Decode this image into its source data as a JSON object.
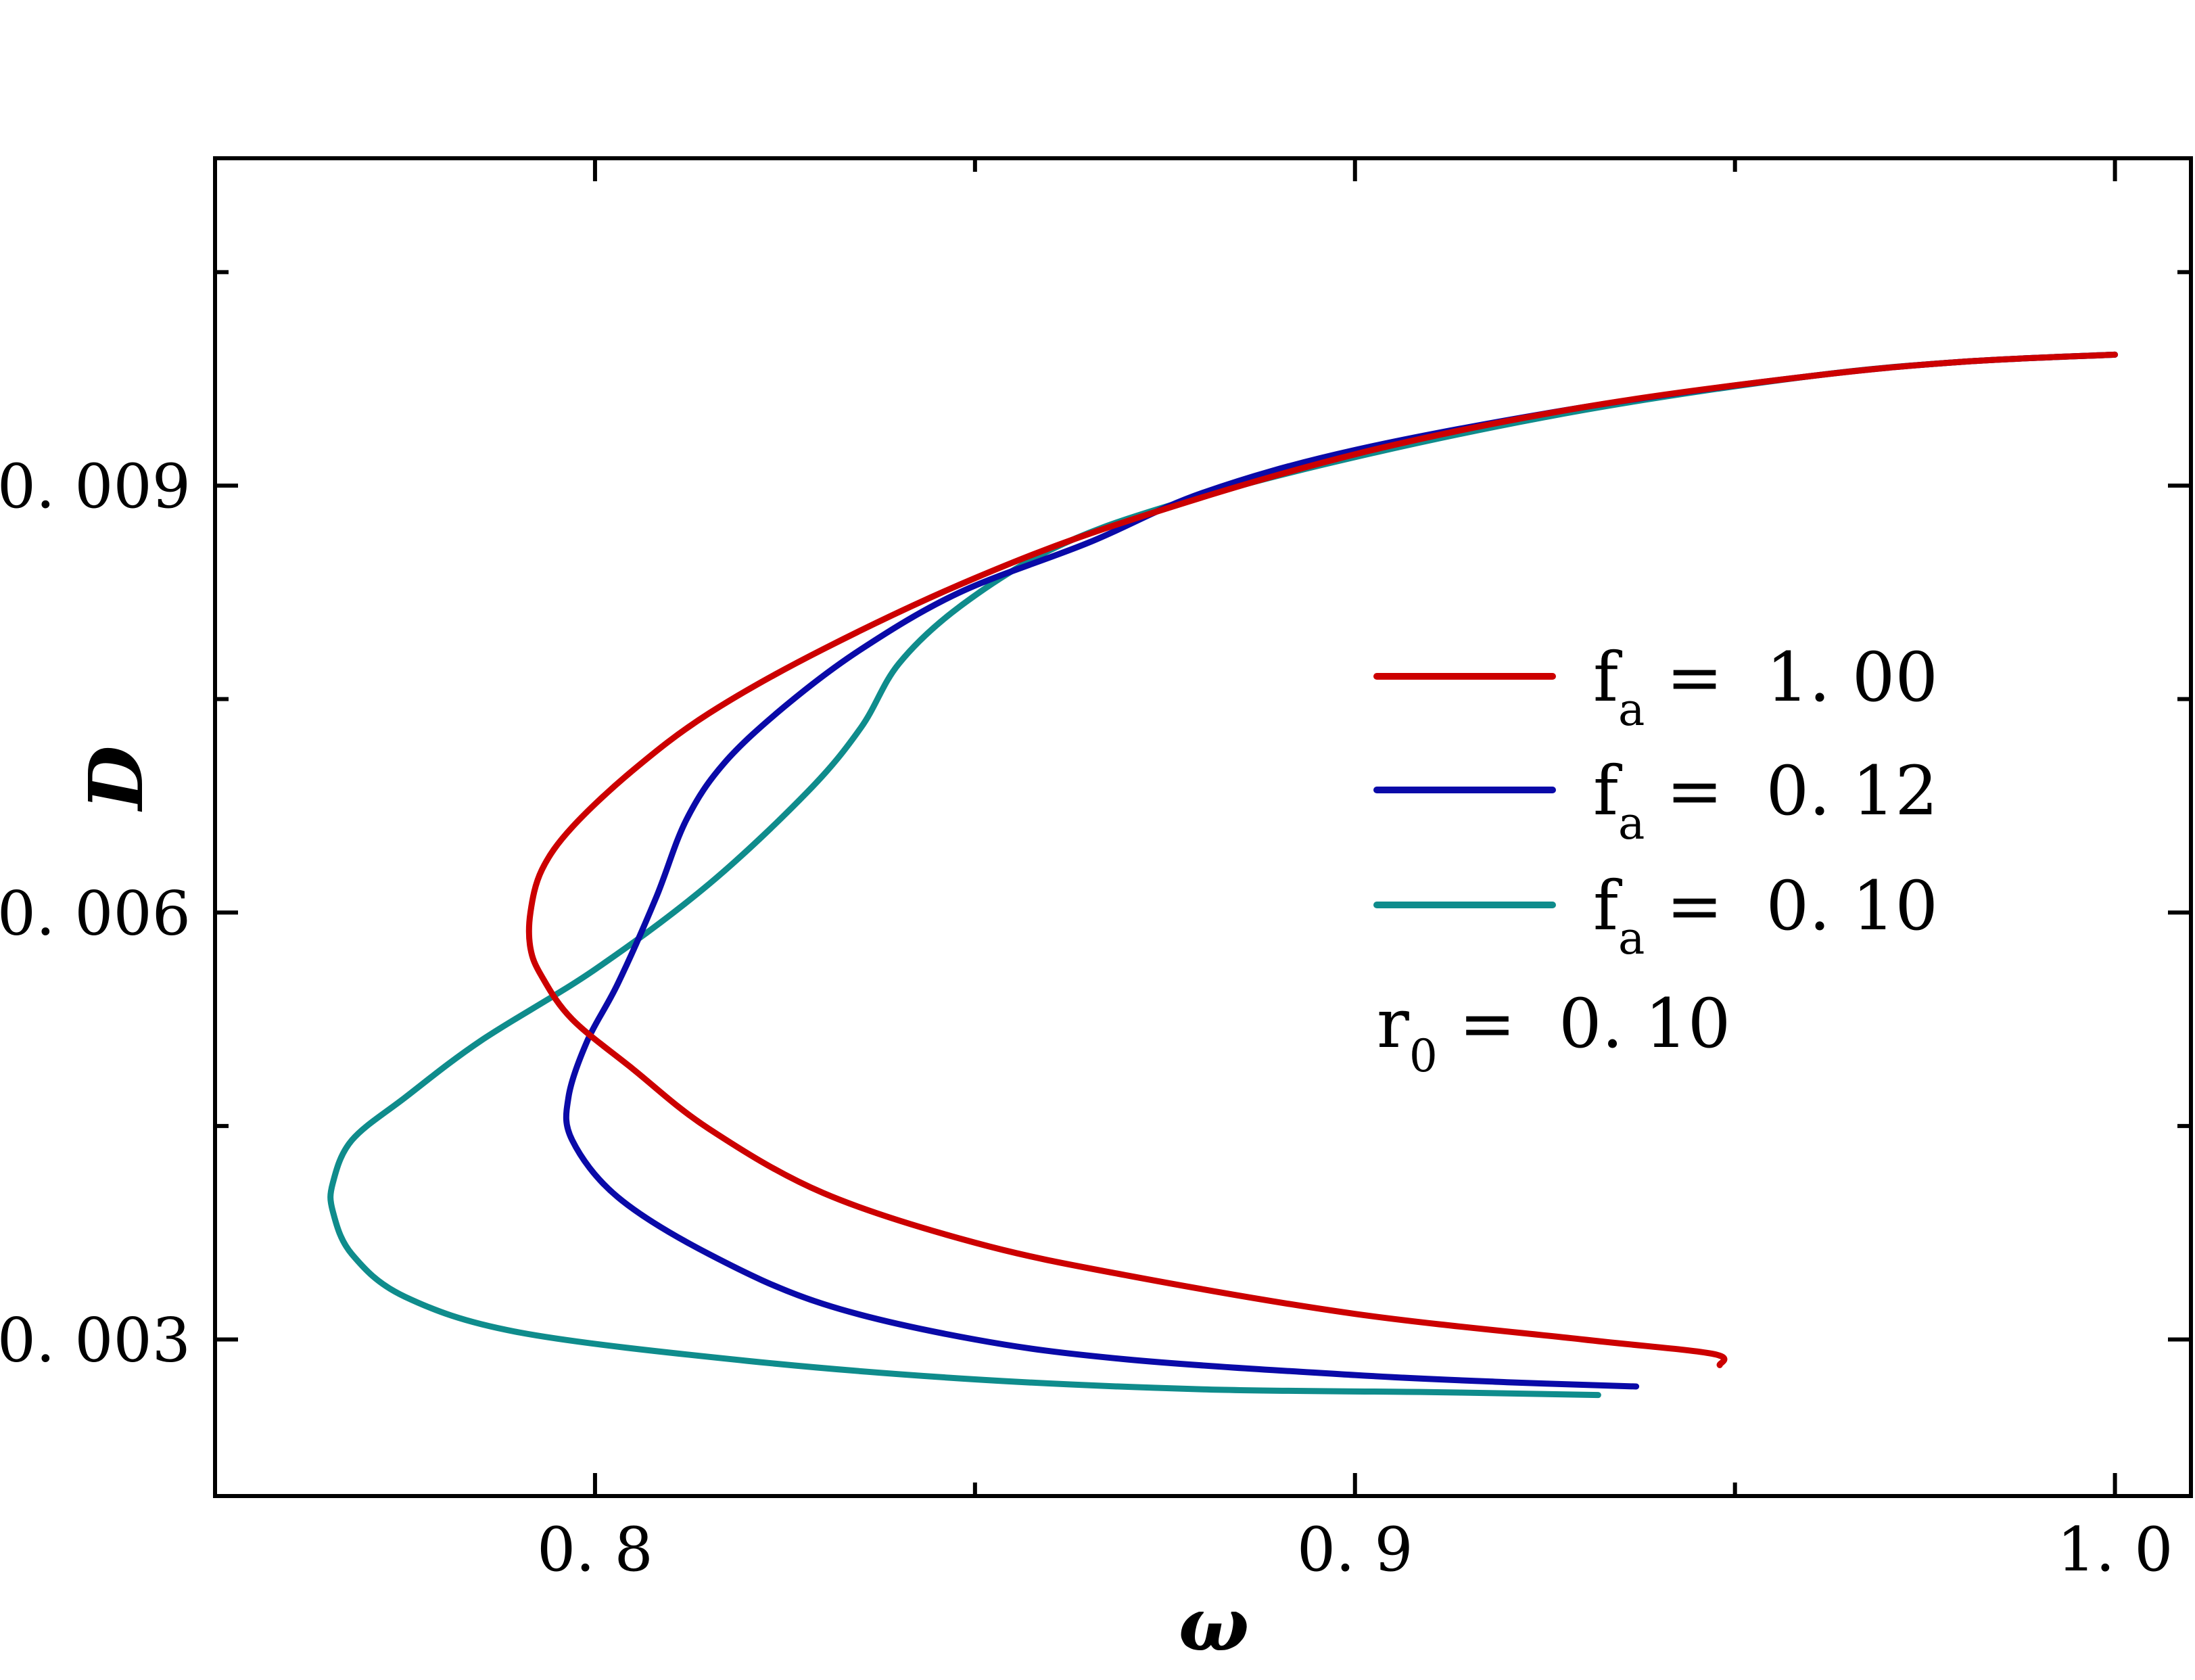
{
  "chart_data": {
    "type": "line",
    "xlabel": "ω",
    "ylabel": "D",
    "xlim": [
      0.75,
      1.01
    ],
    "ylim": [
      0.0019,
      0.0113
    ],
    "x_ticks": [
      {
        "value": 0.8,
        "label": "0. 8"
      },
      {
        "value": 0.9,
        "label": "0. 9"
      },
      {
        "value": 1.0,
        "label": "1. 0"
      }
    ],
    "x_minor_ticks": [
      0.85,
      0.95
    ],
    "y_ticks": [
      {
        "value": 0.003,
        "label": "0. 003"
      },
      {
        "value": 0.006,
        "label": "0. 006"
      },
      {
        "value": 0.009,
        "label": "0. 009"
      }
    ],
    "y_minor_ticks": [
      0.0045,
      0.0075,
      0.0105
    ],
    "legend_position": "right",
    "annotation": {
      "main": "r",
      "sub": "0",
      "rest": " =  0. 10"
    },
    "series": [
      {
        "name": "f_a = 1.00",
        "label_main": "f",
        "label_sub": "a",
        "label_rest": " =  1. 00",
        "color": "#cc0000",
        "points": [
          [
            0.948,
            0.00282
          ],
          [
            0.947,
            0.0029
          ],
          [
            0.93,
            0.003
          ],
          [
            0.9,
            0.00318
          ],
          [
            0.87,
            0.00345
          ],
          [
            0.85,
            0.00368
          ],
          [
            0.83,
            0.00403
          ],
          [
            0.815,
            0.00448
          ],
          [
            0.805,
            0.0049
          ],
          [
            0.797,
            0.00525
          ],
          [
            0.793,
            0.00555
          ],
          [
            0.7915,
            0.00575
          ],
          [
            0.7915,
            0.006
          ],
          [
            0.793,
            0.0063
          ],
          [
            0.797,
            0.0066
          ],
          [
            0.805,
            0.007
          ],
          [
            0.815,
            0.0074
          ],
          [
            0.83,
            0.00785
          ],
          [
            0.85,
            0.00835
          ],
          [
            0.87,
            0.00875
          ],
          [
            0.9,
            0.00922
          ],
          [
            0.93,
            0.00955
          ],
          [
            0.96,
            0.00977
          ],
          [
            0.98,
            0.00987
          ],
          [
            1.0,
            0.00992
          ]
        ]
      },
      {
        "name": "f_a = 0.12",
        "label_main": "f",
        "label_sub": "a",
        "label_rest": " =  0. 12",
        "color": "#0a0aa8",
        "points": [
          [
            0.937,
            0.00267
          ],
          [
            0.92,
            0.0027
          ],
          [
            0.9,
            0.00275
          ],
          [
            0.87,
            0.00286
          ],
          [
            0.85,
            0.003
          ],
          [
            0.83,
            0.00325
          ],
          [
            0.815,
            0.0036
          ],
          [
            0.803,
            0.004
          ],
          [
            0.797,
            0.0044
          ],
          [
            0.7965,
            0.0047
          ],
          [
            0.799,
            0.0051
          ],
          [
            0.803,
            0.0055
          ],
          [
            0.808,
            0.0061
          ],
          [
            0.812,
            0.00665
          ],
          [
            0.817,
            0.00705
          ],
          [
            0.825,
            0.00745
          ],
          [
            0.835,
            0.00785
          ],
          [
            0.848,
            0.00825
          ],
          [
            0.865,
            0.0086
          ],
          [
            0.88,
            0.00895
          ],
          [
            0.9,
            0.00925
          ],
          [
            0.93,
            0.00955
          ],
          [
            0.96,
            0.00977
          ],
          [
            0.98,
            0.00987
          ],
          [
            1.0,
            0.00992
          ]
        ]
      },
      {
        "name": "f_a = 0.10",
        "label_main": "f",
        "label_sub": "a",
        "label_rest": " =  0. 10",
        "color": "#0f8c8c",
        "points": [
          [
            0.932,
            0.00261
          ],
          [
            0.91,
            0.00263
          ],
          [
            0.88,
            0.00265
          ],
          [
            0.85,
            0.00272
          ],
          [
            0.82,
            0.00285
          ],
          [
            0.79,
            0.00305
          ],
          [
            0.775,
            0.0033
          ],
          [
            0.768,
            0.0036
          ],
          [
            0.7655,
            0.0039
          ],
          [
            0.7655,
            0.0041
          ],
          [
            0.768,
            0.0044
          ],
          [
            0.775,
            0.0047
          ],
          [
            0.785,
            0.0051
          ],
          [
            0.8,
            0.0056
          ],
          [
            0.815,
            0.0062
          ],
          [
            0.828,
            0.00685
          ],
          [
            0.835,
            0.0073
          ],
          [
            0.84,
            0.00775
          ],
          [
            0.848,
            0.00815
          ],
          [
            0.86,
            0.00855
          ],
          [
            0.875,
            0.00885
          ],
          [
            0.9,
            0.0092
          ],
          [
            0.93,
            0.00953
          ],
          [
            0.96,
            0.00977
          ],
          [
            0.98,
            0.00987
          ],
          [
            1.0,
            0.00992
          ]
        ]
      }
    ]
  }
}
